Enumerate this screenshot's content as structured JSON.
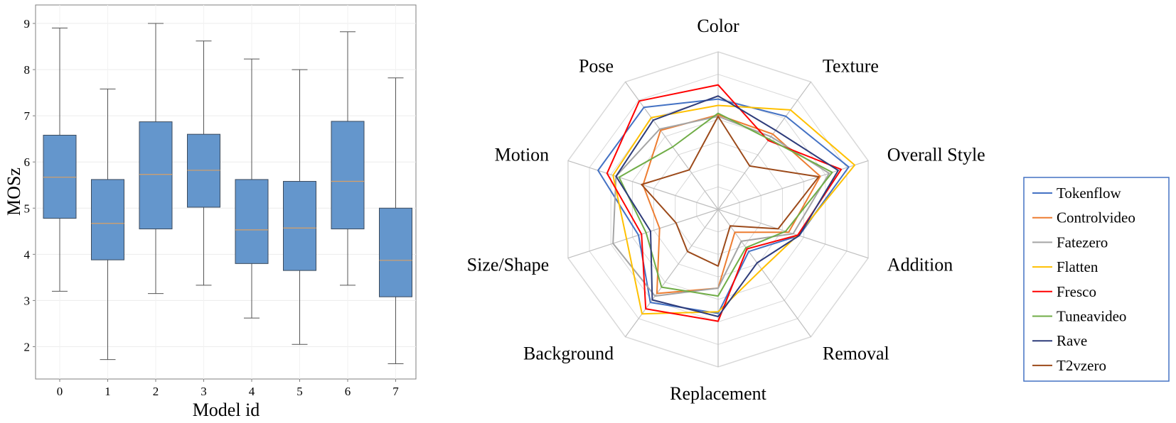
{
  "chart_data": [
    {
      "type": "box",
      "xlabel": "Model id",
      "ylabel": "MOSz",
      "ylim": [
        1.3,
        9.4
      ],
      "yticks": [
        2,
        3,
        4,
        5,
        6,
        7,
        8,
        9
      ],
      "categories": [
        "0",
        "1",
        "2",
        "3",
        "4",
        "5",
        "6",
        "7"
      ],
      "boxes": [
        {
          "min": 3.2,
          "q1": 4.78,
          "median": 5.67,
          "q3": 6.58,
          "max": 8.9
        },
        {
          "min": 1.72,
          "q1": 3.88,
          "median": 4.67,
          "q3": 5.62,
          "max": 7.58
        },
        {
          "min": 3.15,
          "q1": 4.55,
          "median": 5.73,
          "q3": 6.87,
          "max": 9.0
        },
        {
          "min": 3.33,
          "q1": 5.02,
          "median": 5.82,
          "q3": 6.6,
          "max": 8.62
        },
        {
          "min": 2.62,
          "q1": 3.8,
          "median": 4.53,
          "q3": 5.62,
          "max": 8.23
        },
        {
          "min": 2.05,
          "q1": 3.65,
          "median": 4.57,
          "q3": 5.58,
          "max": 8.0
        },
        {
          "min": 3.33,
          "q1": 4.55,
          "median": 5.58,
          "q3": 6.88,
          "max": 8.82
        },
        {
          "min": 1.63,
          "q1": 3.08,
          "median": 3.87,
          "q3": 5.0,
          "max": 7.82
        }
      ],
      "box_color": "#6496cc",
      "box_edge_color": "#3b4a5c",
      "median_color": "#d9a066",
      "grid": true
    },
    {
      "type": "radar",
      "axes": [
        "Color",
        "Texture",
        "Overall Style",
        "Addition",
        "Removal",
        "Replacement",
        "Background",
        "Size/Shape",
        "Motion",
        "Pose"
      ],
      "rmax": 1.0,
      "rings": 7,
      "legend_position": "right",
      "series": [
        {
          "name": "Tokenflow",
          "color": "#4472c4",
          "values": [
            0.7,
            0.73,
            0.87,
            0.54,
            0.33,
            0.66,
            0.73,
            0.53,
            0.8,
            0.8
          ]
        },
        {
          "name": "Controlvideo",
          "color": "#ed7d31",
          "values": [
            0.6,
            0.59,
            0.68,
            0.47,
            0.18,
            0.5,
            0.66,
            0.39,
            0.5,
            0.62
          ]
        },
        {
          "name": "Fatezero",
          "color": "#a5a5a5",
          "values": [
            0.59,
            0.57,
            0.74,
            0.5,
            0.25,
            0.5,
            0.68,
            0.7,
            0.68,
            0.63
          ]
        },
        {
          "name": "Flatten",
          "color": "#ffc000",
          "values": [
            0.66,
            0.78,
            0.91,
            0.53,
            0.47,
            0.65,
            0.82,
            0.61,
            0.7,
            0.72
          ]
        },
        {
          "name": "Fresco",
          "color": "#ff0000",
          "values": [
            0.79,
            0.54,
            0.82,
            0.53,
            0.31,
            0.71,
            0.78,
            0.51,
            0.74,
            0.85
          ]
        },
        {
          "name": "Tuneavideo",
          "color": "#70ad47",
          "values": [
            0.61,
            0.55,
            0.76,
            0.45,
            0.3,
            0.55,
            0.61,
            0.48,
            0.66,
            0.49
          ]
        },
        {
          "name": "Rave",
          "color": "#2e3c7a",
          "values": [
            0.72,
            0.62,
            0.8,
            0.54,
            0.42,
            0.68,
            0.71,
            0.45,
            0.68,
            0.7
          ]
        },
        {
          "name": "T2vzero",
          "color": "#9c4a1a",
          "values": [
            0.59,
            0.34,
            0.67,
            0.4,
            0.13,
            0.36,
            0.33,
            0.28,
            0.51,
            0.31
          ]
        }
      ]
    }
  ]
}
